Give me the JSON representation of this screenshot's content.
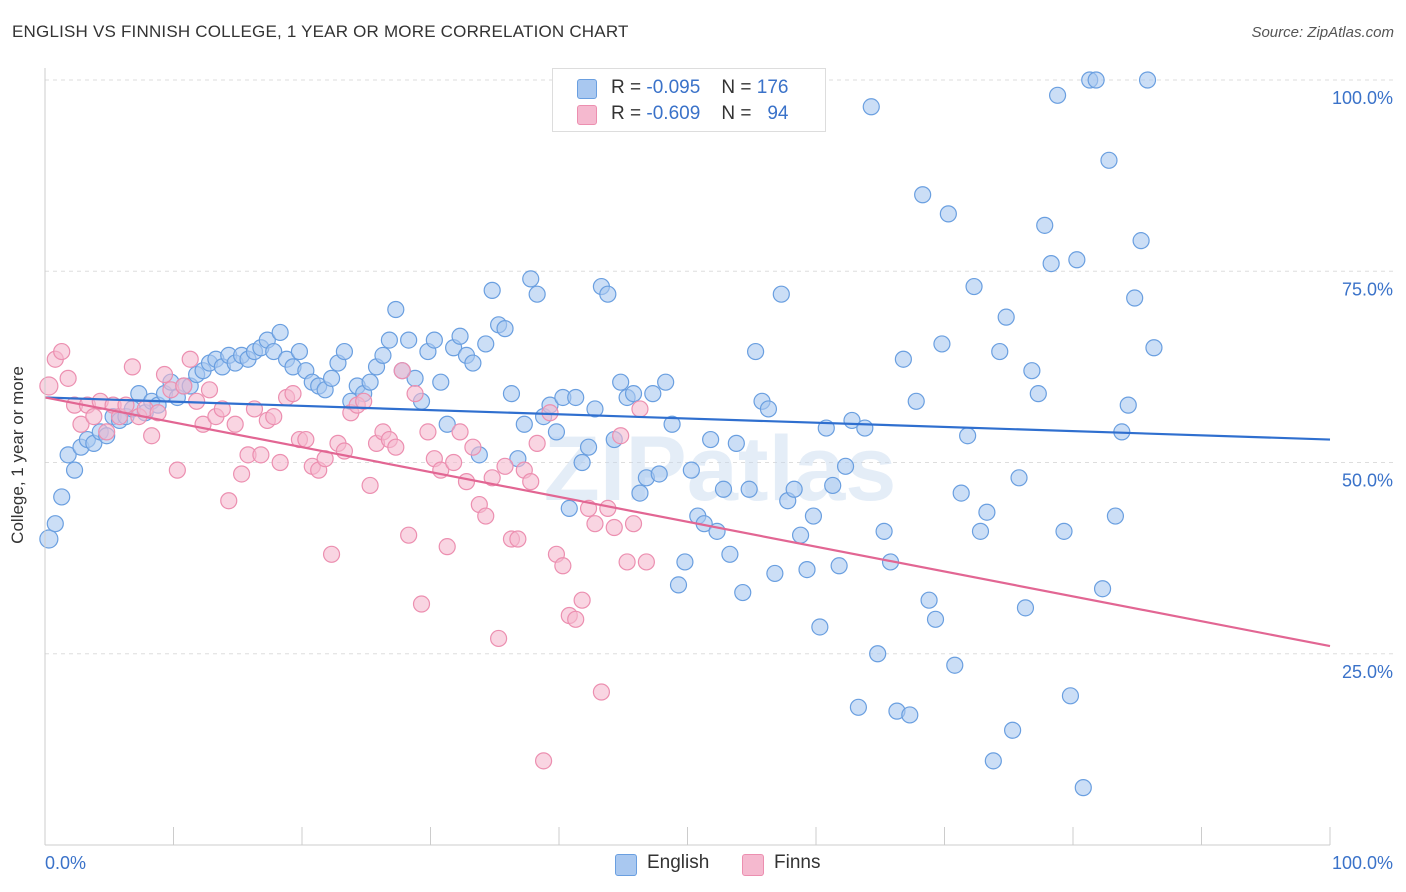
{
  "title": "ENGLISH VS FINNISH COLLEGE, 1 YEAR OR MORE CORRELATION CHART",
  "source": "Source: ZipAtlas.com",
  "watermark": "ZIPatlas",
  "colors": {
    "english_fill": "#a9c8f0",
    "english_stroke": "#6a9fe0",
    "english_line": "#2f6fcf",
    "finns_fill": "#f5b9cf",
    "finns_stroke": "#ec8fb0",
    "finns_line": "#e26693",
    "tick_label": "#3a72c9",
    "grid": "#dddddd"
  },
  "legend_top": {
    "rows": [
      {
        "r_label": "R =",
        "r_value": "-0.095",
        "n_label": "N =",
        "n_value": "176"
      },
      {
        "r_label": "R =",
        "r_value": "-0.609",
        "n_label": "N =",
        "n_value": "94"
      }
    ]
  },
  "legend_bottom": [
    "English",
    "Finns"
  ],
  "chart_data": {
    "type": "scatter",
    "title": "ENGLISH VS FINNISH COLLEGE, 1 YEAR OR MORE CORRELATION CHART",
    "xlabel": "",
    "ylabel": "College, 1 year or more",
    "xlim": [
      0,
      100
    ],
    "ylim": [
      0,
      100
    ],
    "x_tick_labels": [
      "0.0%",
      "100.0%"
    ],
    "y_ticks": [
      25,
      50,
      75,
      100
    ],
    "y_tick_labels": [
      "25.0%",
      "50.0%",
      "75.0%",
      "100.0%"
    ],
    "grid": "horizontal dashed",
    "legend": "top-center and bottom-center",
    "series": [
      {
        "name": "English",
        "r": -0.095,
        "n": 176,
        "trend": {
          "x": [
            0,
            100
          ],
          "y": [
            58.5,
            53
          ]
        },
        "points": [
          [
            0.3,
            40
          ],
          [
            0.8,
            42
          ],
          [
            1.3,
            45.5
          ],
          [
            1.8,
            51
          ],
          [
            2.3,
            49
          ],
          [
            2.8,
            52
          ],
          [
            3.3,
            53
          ],
          [
            3.8,
            52.5
          ],
          [
            4.3,
            54
          ],
          [
            4.8,
            53.5
          ],
          [
            5.3,
            56
          ],
          [
            5.8,
            55.5
          ],
          [
            6.3,
            56
          ],
          [
            6.8,
            57
          ],
          [
            7.3,
            59
          ],
          [
            7.8,
            56.5
          ],
          [
            8.3,
            58
          ],
          [
            8.8,
            57.5
          ],
          [
            9.3,
            59
          ],
          [
            9.8,
            60.5
          ],
          [
            10.3,
            58.5
          ],
          [
            10.8,
            60
          ],
          [
            11.3,
            60
          ],
          [
            11.8,
            61.5
          ],
          [
            12.3,
            62
          ],
          [
            12.8,
            63
          ],
          [
            13.3,
            63.5
          ],
          [
            13.8,
            62.5
          ],
          [
            14.3,
            64
          ],
          [
            14.8,
            63
          ],
          [
            15.3,
            64
          ],
          [
            15.8,
            63.5
          ],
          [
            16.3,
            64.5
          ],
          [
            16.8,
            65
          ],
          [
            17.3,
            66
          ],
          [
            17.8,
            64.5
          ],
          [
            18.3,
            67
          ],
          [
            18.8,
            63.5
          ],
          [
            19.3,
            62.5
          ],
          [
            19.8,
            64.5
          ],
          [
            20.3,
            62
          ],
          [
            20.8,
            60.5
          ],
          [
            21.3,
            60
          ],
          [
            21.8,
            59.5
          ],
          [
            22.3,
            61
          ],
          [
            22.8,
            63
          ],
          [
            23.3,
            64.5
          ],
          [
            23.8,
            58
          ],
          [
            24.3,
            60
          ],
          [
            24.8,
            59
          ],
          [
            25.3,
            60.5
          ],
          [
            25.8,
            62.5
          ],
          [
            26.3,
            64
          ],
          [
            26.8,
            66
          ],
          [
            27.3,
            70
          ],
          [
            27.8,
            62
          ],
          [
            28.3,
            66
          ],
          [
            28.8,
            61
          ],
          [
            29.3,
            58
          ],
          [
            29.8,
            64.5
          ],
          [
            30.3,
            66
          ],
          [
            30.8,
            60.5
          ],
          [
            31.3,
            55
          ],
          [
            31.8,
            65
          ],
          [
            32.3,
            66.5
          ],
          [
            32.8,
            64
          ],
          [
            33.3,
            63
          ],
          [
            33.8,
            51
          ],
          [
            34.3,
            65.5
          ],
          [
            34.8,
            72.5
          ],
          [
            35.3,
            68
          ],
          [
            35.8,
            67.5
          ],
          [
            36.3,
            59
          ],
          [
            36.8,
            50.5
          ],
          [
            37.3,
            55
          ],
          [
            37.8,
            74
          ],
          [
            38.3,
            72
          ],
          [
            38.8,
            56
          ],
          [
            39.3,
            57.5
          ],
          [
            39.8,
            54
          ],
          [
            40.3,
            58.5
          ],
          [
            40.8,
            44
          ],
          [
            41.3,
            58.5
          ],
          [
            41.8,
            50
          ],
          [
            42.3,
            52
          ],
          [
            42.8,
            57
          ],
          [
            43.3,
            73
          ],
          [
            43.8,
            72
          ],
          [
            44.3,
            53
          ],
          [
            44.8,
            60.5
          ],
          [
            45.3,
            58.5
          ],
          [
            45.8,
            59
          ],
          [
            46.3,
            46
          ],
          [
            46.8,
            48
          ],
          [
            47.3,
            59
          ],
          [
            47.8,
            48.5
          ],
          [
            48.3,
            60.5
          ],
          [
            48.8,
            55
          ],
          [
            49.3,
            34
          ],
          [
            49.8,
            37
          ],
          [
            50.3,
            49
          ],
          [
            50.8,
            43
          ],
          [
            51.3,
            42
          ],
          [
            51.8,
            53
          ],
          [
            52.3,
            41
          ],
          [
            52.8,
            46.5
          ],
          [
            53.3,
            38
          ],
          [
            53.8,
            52.5
          ],
          [
            54.3,
            33
          ],
          [
            54.8,
            46.5
          ],
          [
            55.3,
            64.5
          ],
          [
            55.8,
            58
          ],
          [
            56.3,
            57
          ],
          [
            56.8,
            35.5
          ],
          [
            57.3,
            72
          ],
          [
            57.8,
            45
          ],
          [
            58.3,
            46.5
          ],
          [
            58.8,
            40.5
          ],
          [
            59.3,
            36
          ],
          [
            59.8,
            43
          ],
          [
            60.3,
            28.5
          ],
          [
            60.8,
            54.5
          ],
          [
            61.3,
            47
          ],
          [
            61.8,
            36.5
          ],
          [
            62.3,
            49.5
          ],
          [
            62.8,
            55.5
          ],
          [
            63.3,
            18
          ],
          [
            63.8,
            54.5
          ],
          [
            64.3,
            96.5
          ],
          [
            64.8,
            25
          ],
          [
            65.3,
            41
          ],
          [
            65.8,
            37
          ],
          [
            66.3,
            17.5
          ],
          [
            66.8,
            63.5
          ],
          [
            67.3,
            17
          ],
          [
            67.8,
            58
          ],
          [
            68.3,
            85
          ],
          [
            68.8,
            32
          ],
          [
            69.3,
            29.5
          ],
          [
            69.8,
            65.5
          ],
          [
            70.3,
            82.5
          ],
          [
            70.8,
            23.5
          ],
          [
            71.3,
            46
          ],
          [
            71.8,
            53.5
          ],
          [
            72.3,
            73
          ],
          [
            72.8,
            41
          ],
          [
            73.3,
            43.5
          ],
          [
            73.8,
            11
          ],
          [
            74.3,
            64.5
          ],
          [
            74.8,
            69
          ],
          [
            75.3,
            15
          ],
          [
            75.8,
            48
          ],
          [
            76.3,
            31
          ],
          [
            76.8,
            62
          ],
          [
            77.3,
            59
          ],
          [
            77.8,
            81
          ],
          [
            78.3,
            76
          ],
          [
            78.8,
            98
          ],
          [
            79.3,
            41
          ],
          [
            79.8,
            19.5
          ],
          [
            80.3,
            76.5
          ],
          [
            80.8,
            7.5
          ],
          [
            81.3,
            100
          ],
          [
            81.8,
            100
          ],
          [
            82.3,
            33.5
          ],
          [
            82.8,
            89.5
          ],
          [
            83.3,
            43
          ],
          [
            83.8,
            54
          ],
          [
            84.3,
            57.5
          ],
          [
            84.8,
            71.5
          ],
          [
            85.3,
            79
          ],
          [
            85.8,
            100
          ],
          [
            86.3,
            65
          ]
        ]
      },
      {
        "name": "Finns",
        "r": -0.609,
        "n": 94,
        "trend": {
          "x": [
            0,
            100
          ],
          "y": [
            58.5,
            26
          ]
        },
        "points": [
          [
            0.3,
            60
          ],
          [
            0.8,
            63.5
          ],
          [
            1.3,
            64.5
          ],
          [
            1.8,
            61
          ],
          [
            2.3,
            57.5
          ],
          [
            2.8,
            55
          ],
          [
            3.3,
            57.5
          ],
          [
            3.8,
            56
          ],
          [
            4.3,
            58
          ],
          [
            4.8,
            54
          ],
          [
            5.3,
            57.5
          ],
          [
            5.8,
            56
          ],
          [
            6.3,
            57.5
          ],
          [
            6.8,
            62.5
          ],
          [
            7.3,
            56
          ],
          [
            7.8,
            57
          ],
          [
            8.3,
            53.5
          ],
          [
            8.8,
            56.5
          ],
          [
            9.3,
            61.5
          ],
          [
            9.8,
            59.5
          ],
          [
            10.3,
            49
          ],
          [
            10.8,
            60
          ],
          [
            11.3,
            63.5
          ],
          [
            11.8,
            58
          ],
          [
            12.3,
            55
          ],
          [
            12.8,
            59.5
          ],
          [
            13.3,
            56
          ],
          [
            13.8,
            57
          ],
          [
            14.3,
            45
          ],
          [
            14.8,
            55
          ],
          [
            15.3,
            48.5
          ],
          [
            15.8,
            51
          ],
          [
            16.3,
            57
          ],
          [
            16.8,
            51
          ],
          [
            17.3,
            55.5
          ],
          [
            17.8,
            56
          ],
          [
            18.3,
            50
          ],
          [
            18.8,
            58.5
          ],
          [
            19.3,
            59
          ],
          [
            19.8,
            53
          ],
          [
            20.3,
            53
          ],
          [
            20.8,
            49.5
          ],
          [
            21.3,
            49
          ],
          [
            21.8,
            50.5
          ],
          [
            22.3,
            38
          ],
          [
            22.8,
            52.5
          ],
          [
            23.3,
            51.5
          ],
          [
            23.8,
            56.5
          ],
          [
            24.3,
            57.5
          ],
          [
            24.8,
            58
          ],
          [
            25.3,
            47
          ],
          [
            25.8,
            52.5
          ],
          [
            26.3,
            54
          ],
          [
            26.8,
            53
          ],
          [
            27.3,
            52
          ],
          [
            27.8,
            62
          ],
          [
            28.3,
            40.5
          ],
          [
            28.8,
            59
          ],
          [
            29.3,
            31.5
          ],
          [
            29.8,
            54
          ],
          [
            30.3,
            50.5
          ],
          [
            30.8,
            49
          ],
          [
            31.3,
            39
          ],
          [
            31.8,
            50
          ],
          [
            32.3,
            54
          ],
          [
            32.8,
            47.5
          ],
          [
            33.3,
            52
          ],
          [
            33.8,
            44.5
          ],
          [
            34.3,
            43
          ],
          [
            34.8,
            48
          ],
          [
            35.3,
            27
          ],
          [
            35.8,
            49.5
          ],
          [
            36.3,
            40
          ],
          [
            36.8,
            40
          ],
          [
            37.3,
            49
          ],
          [
            37.8,
            47.5
          ],
          [
            38.3,
            52.5
          ],
          [
            38.8,
            11
          ],
          [
            39.3,
            56.5
          ],
          [
            39.8,
            38
          ],
          [
            40.3,
            36.5
          ],
          [
            40.8,
            30
          ],
          [
            41.3,
            29.5
          ],
          [
            41.8,
            32
          ],
          [
            42.3,
            44
          ],
          [
            42.8,
            42
          ],
          [
            43.3,
            20
          ],
          [
            43.8,
            44
          ],
          [
            44.3,
            41.5
          ],
          [
            44.8,
            53.5
          ],
          [
            45.3,
            37
          ],
          [
            45.8,
            42
          ],
          [
            46.3,
            57
          ],
          [
            46.8,
            37
          ]
        ]
      }
    ]
  }
}
